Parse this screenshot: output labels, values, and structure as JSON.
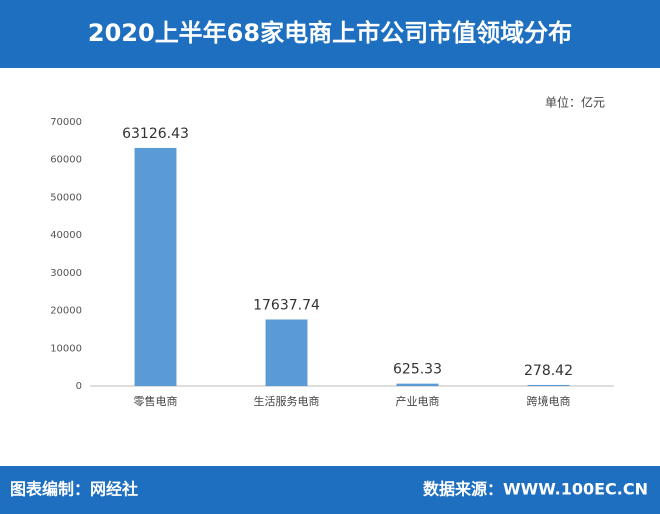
{
  "chart_data": {
    "type": "bar",
    "title": "2020上半年68家电商上市公司市值领域分布",
    "unit_note": "单位：亿元",
    "categories": [
      "零售电商",
      "生活服务电商",
      "产业电商",
      "跨境电商"
    ],
    "values": [
      63126.43,
      17637.74,
      625.33,
      278.42
    ],
    "color": "#5b9bd5",
    "ylim": [
      0,
      70000
    ],
    "yticks": [
      0,
      10000,
      20000,
      30000,
      40000,
      50000,
      60000,
      70000
    ],
    "grid": false
  },
  "footer": {
    "left": "图表编制：网经社",
    "right": "数据来源：WWW.100EC.CN"
  }
}
